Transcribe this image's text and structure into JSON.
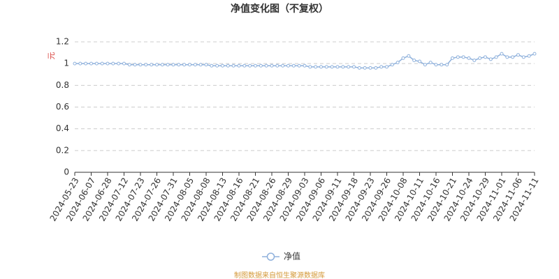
{
  "chart_data": {
    "type": "line",
    "title": "净值变化图（不复权）",
    "y_label": "元",
    "source": "制图数据来自恒生聚源数据库",
    "categories": [
      "2024-05-23",
      null,
      null,
      "2024-06-07",
      null,
      null,
      "2024-06-28",
      null,
      null,
      "2024-07-12",
      null,
      null,
      "2024-07-23",
      null,
      null,
      "2024-07-26",
      null,
      null,
      "2024-07-31",
      null,
      null,
      "2024-08-05",
      null,
      null,
      "2024-08-08",
      null,
      null,
      "2024-08-13",
      null,
      null,
      "2024-08-16",
      null,
      null,
      "2024-08-21",
      null,
      null,
      "2024-08-26",
      null,
      null,
      "2024-08-29",
      null,
      null,
      "2024-09-03",
      null,
      null,
      "2024-09-06",
      null,
      null,
      "2024-09-11",
      null,
      null,
      "2024-09-18",
      null,
      null,
      "2024-09-23",
      null,
      null,
      "2024-09-26",
      null,
      null,
      "2024-10-08",
      null,
      null,
      "2024-10-11",
      null,
      null,
      "2024-10-16",
      null,
      null,
      "2024-10-21",
      null,
      null,
      "2024-10-24",
      null,
      null,
      "2024-10-29",
      null,
      null,
      "2024-11-01",
      null,
      null,
      "2024-11-06",
      null,
      null,
      "2024-11-11"
    ],
    "series": [
      {
        "name": "净值",
        "color": "#8fb1dc",
        "values": [
          1,
          1,
          1,
          1,
          1,
          1,
          1,
          1,
          1,
          1,
          0.99,
          0.99,
          0.99,
          0.99,
          0.99,
          0.99,
          0.99,
          0.99,
          0.99,
          0.99,
          0.99,
          0.99,
          0.99,
          0.99,
          0.99,
          0.98,
          0.98,
          0.98,
          0.98,
          0.98,
          0.98,
          0.98,
          0.98,
          0.98,
          0.98,
          0.98,
          0.98,
          0.98,
          0.98,
          0.98,
          0.98,
          0.98,
          0.98,
          0.97,
          0.97,
          0.97,
          0.97,
          0.97,
          0.97,
          0.97,
          0.97,
          0.97,
          0.96,
          0.96,
          0.96,
          0.96,
          0.97,
          0.97,
          0.99,
          1.01,
          1.05,
          1.07,
          1.03,
          1.02,
          0.99,
          1.01,
          0.99,
          0.99,
          0.99,
          1.05,
          1.06,
          1.06,
          1.05,
          1.03,
          1.05,
          1.06,
          1.04,
          1.06,
          1.09,
          1.06,
          1.06,
          1.08,
          1.06,
          1.07,
          1.09
        ]
      }
    ],
    "ylim": [
      0,
      1.2
    ],
    "yticks": [
      0,
      0.2,
      0.4,
      0.6,
      0.8,
      1,
      1.2
    ],
    "grid": true
  }
}
